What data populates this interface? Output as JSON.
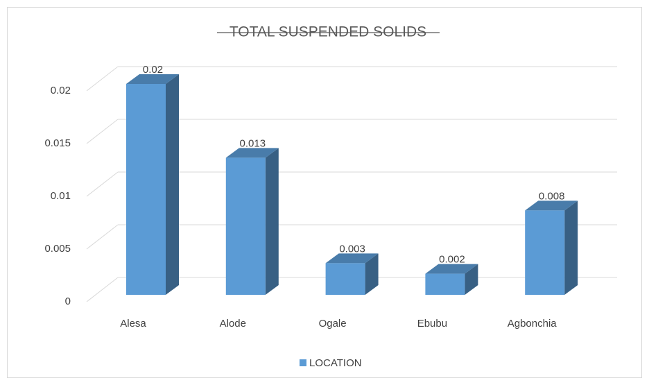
{
  "chart_data": {
    "type": "bar3d",
    "title": "TOTAL SUSPENDED SOLIDS",
    "categories": [
      "Alesa",
      "Alode",
      "Ogale",
      "Ebubu",
      "Agbonchia"
    ],
    "series": [
      {
        "name": "LOCATION",
        "color": "#5b9bd5",
        "values": [
          0.02,
          0.013,
          0.003,
          0.002,
          0.008
        ]
      }
    ],
    "ylim": [
      0,
      0.02
    ],
    "yticks": [
      0,
      0.005,
      0.01,
      0.015,
      0.02
    ],
    "grid": true,
    "legend": "bottom"
  }
}
